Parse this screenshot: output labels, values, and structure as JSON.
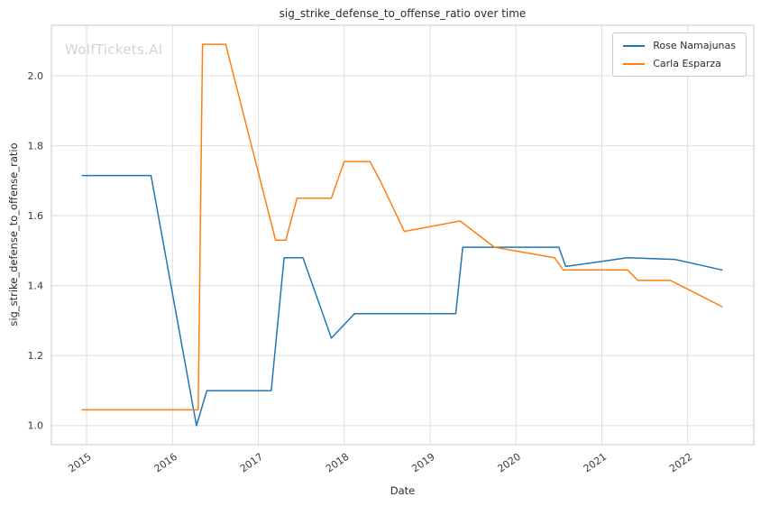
{
  "watermark": "WolfTickets.AI",
  "chart_data": {
    "type": "line",
    "title": "sig_strike_defense_to_offense_ratio over time",
    "xlabel": "Date",
    "ylabel": "sig_strike_defense_to_offense_ratio",
    "xlim": [
      2014.59,
      2022.77
    ],
    "ylim": [
      0.9455,
      2.1445
    ],
    "grid": true,
    "legend_position": "upper right",
    "xticks": [
      2015,
      2016,
      2017,
      2018,
      2019,
      2020,
      2021,
      2022
    ],
    "xtick_labels": [
      "2015",
      "2016",
      "2017",
      "2018",
      "2019",
      "2020",
      "2021",
      "2022"
    ],
    "yticks": [
      1.0,
      1.2,
      1.4,
      1.6,
      1.8,
      2.0
    ],
    "ytick_labels": [
      "1.0",
      "1.2",
      "1.4",
      "1.6",
      "1.8",
      "2.0"
    ],
    "colors": {
      "grid": "#dedede",
      "spine": "#c9c9c9",
      "tick_text": "#3a3a3a",
      "watermark": "#d4d4d4"
    },
    "series": [
      {
        "name": "Rose Namajunas",
        "color": "#1f77b4",
        "x": [
          2014.95,
          2015.75,
          2016.28,
          2016.4,
          2017.15,
          2017.3,
          2017.52,
          2017.85,
          2018.12,
          2019.3,
          2019.38,
          2020.5,
          2020.58,
          2021.3,
          2021.85,
          2022.4
        ],
        "y": [
          1.715,
          1.715,
          1.0,
          1.1,
          1.1,
          1.48,
          1.48,
          1.25,
          1.32,
          1.32,
          1.51,
          1.51,
          1.455,
          1.48,
          1.475,
          1.445
        ]
      },
      {
        "name": "Carla Esparza",
        "color": "#ff7f0e",
        "x": [
          2014.95,
          2016.3,
          2016.35,
          2016.62,
          2017.2,
          2017.32,
          2017.45,
          2017.85,
          2018.0,
          2018.3,
          2018.42,
          2018.7,
          2019.35,
          2019.75,
          2020.45,
          2020.55,
          2021.3,
          2021.42,
          2021.8,
          2022.4
        ],
        "y": [
          1.045,
          1.045,
          2.09,
          2.09,
          1.53,
          1.53,
          1.65,
          1.65,
          1.755,
          1.755,
          1.7,
          1.555,
          1.585,
          1.51,
          1.48,
          1.445,
          1.445,
          1.415,
          1.415,
          1.34
        ]
      }
    ]
  }
}
